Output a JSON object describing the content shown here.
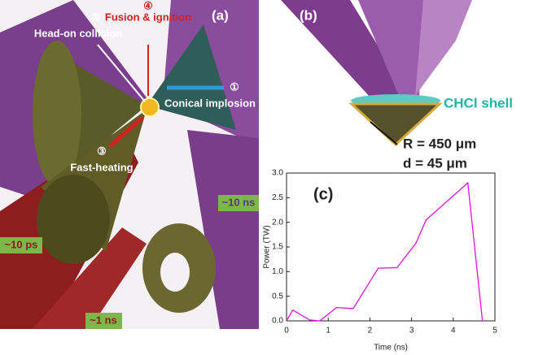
{
  "panel_a": {
    "label": "(a)",
    "step2_num": "②",
    "step2": "Head-on collision",
    "step4_num": "④",
    "step4": "Fusion & ignition",
    "step1_num": "①",
    "step1": "Conical implosion",
    "step3_num": "③",
    "step3": "Fast-heating",
    "t_ns10": "~10 ns",
    "t_ps10": "~10 ps",
    "t_ns1": "~1 ns"
  },
  "panel_b": {
    "label": "(b)",
    "shell": "CHCl shell",
    "radius": "R = 450 μm",
    "thickness": "d = 45 μm"
  },
  "chart_data": {
    "type": "line",
    "title": "(c)",
    "x_label": "Time (ns)",
    "y_label": "Power (TW)",
    "x": [
      0,
      0.15,
      0.55,
      0.8,
      1.2,
      1.6,
      2.2,
      2.65,
      3.1,
      3.35,
      4.35,
      4.7
    ],
    "values": [
      0,
      0.22,
      0.02,
      0,
      0.27,
      0.25,
      1.07,
      1.08,
      1.57,
      2.05,
      2.8,
      0
    ],
    "color": "#e010e0",
    "xlim": [
      0,
      5
    ],
    "xticks": [
      0,
      1,
      2,
      3,
      4,
      5
    ],
    "ylim": [
      0,
      3
    ],
    "yticks": [
      {
        "value": 0,
        "label": "0.0"
      },
      0.5,
      {
        "value": 1,
        "label": "1.0"
      },
      1.5,
      {
        "value": 2,
        "label": "2.0"
      },
      2.5,
      {
        "value": 3,
        "label": "3.0"
      }
    ]
  }
}
